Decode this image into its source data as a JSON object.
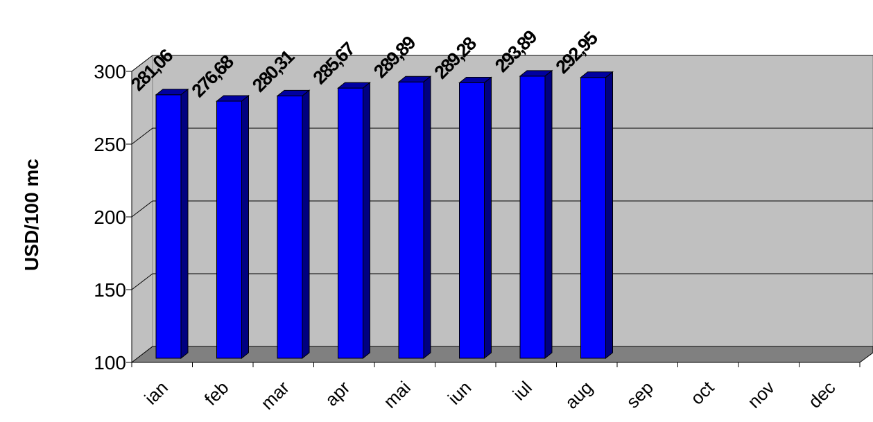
{
  "chart_data": {
    "type": "bar",
    "y_axis_label": "USD/100 mc",
    "categories": [
      "ian",
      "feb",
      "mar",
      "apr",
      "mai",
      "iun",
      "iul",
      "aug",
      "sep",
      "oct",
      "nov",
      "dec"
    ],
    "values": [
      281.06,
      276.68,
      280.31,
      285.67,
      289.89,
      289.28,
      293.89,
      292.95,
      null,
      null,
      null,
      null
    ],
    "value_labels": [
      "281,06",
      "276,68",
      "280,31",
      "285,67",
      "289,89",
      "289,28",
      "293,89",
      "292,95",
      null,
      null,
      null,
      null
    ],
    "color": "#0000ff",
    "ylim": [
      100,
      300
    ],
    "yticks": [
      100,
      150,
      200,
      250,
      300
    ],
    "grid": true
  }
}
